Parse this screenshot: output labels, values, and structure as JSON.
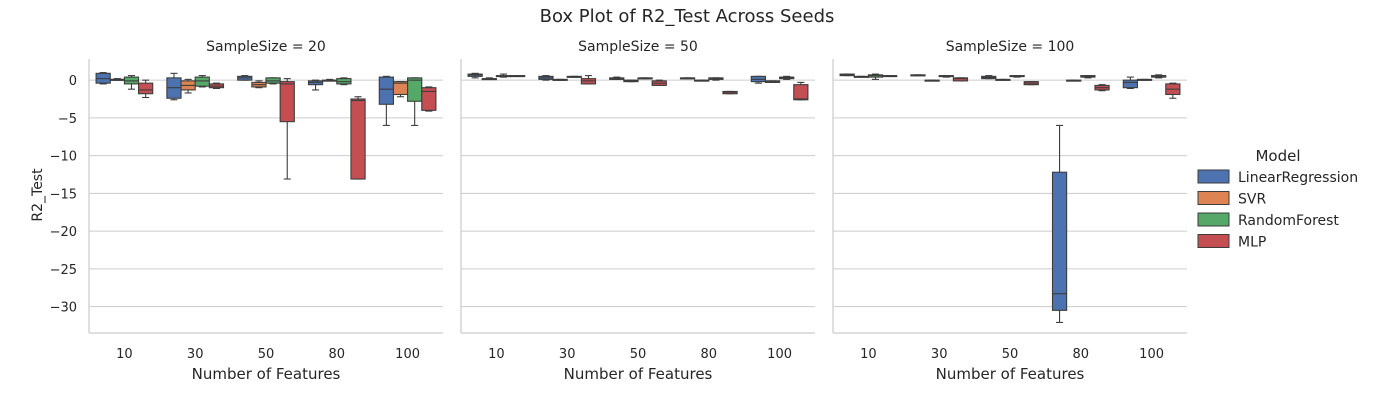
{
  "chart_data": {
    "type": "box",
    "title": "Box Plot of R2_Test Across Seeds",
    "ylabel": "R2_Test",
    "xlabel": "Number of Features",
    "categories": [
      "10",
      "30",
      "50",
      "80",
      "100"
    ],
    "yticks": [
      0,
      -5,
      -10,
      -15,
      -20,
      -25,
      -30
    ],
    "ylim": [
      -33.5,
      2.8
    ],
    "grid": "horizontal",
    "legend": {
      "title": "Model",
      "placement": "right",
      "entries": [
        {
          "name": "LinearRegression",
          "color": "#4c72b0"
        },
        {
          "name": "SVR",
          "color": "#dd8452"
        },
        {
          "name": "RandomForest",
          "color": "#55a868"
        },
        {
          "name": "MLP",
          "color": "#c44e52"
        }
      ]
    },
    "panels": [
      {
        "title": "SampleSize = 20",
        "boxes": {
          "LinearRegression": [
            [
              -0.5,
              -0.4,
              0.2,
              0.9,
              1.0
            ],
            [
              -2.6,
              -2.4,
              -1.0,
              0.3,
              0.9
            ],
            [
              0.0,
              0.0,
              0.3,
              0.5,
              0.6
            ],
            [
              -1.3,
              -0.6,
              -0.3,
              -0.1,
              0.0
            ],
            [
              -6.0,
              -3.2,
              -1.2,
              0.4,
              0.5
            ]
          ],
          "SVR": [
            [
              0.0,
              0.0,
              0.1,
              0.1,
              0.2
            ],
            [
              -1.7,
              -1.3,
              -0.7,
              -0.1,
              0.1
            ],
            [
              -1.0,
              -0.9,
              -0.6,
              -0.3,
              -0.1
            ],
            [
              -0.1,
              -0.1,
              -0.05,
              0.0,
              0.1
            ],
            [
              -2.2,
              -1.9,
              -0.4,
              -0.2,
              -0.2
            ]
          ],
          "RandomForest": [
            [
              -1.2,
              -0.5,
              -0.1,
              0.4,
              0.6
            ],
            [
              -0.9,
              -0.8,
              -0.1,
              0.4,
              0.6
            ],
            [
              -0.5,
              -0.4,
              -0.1,
              0.3,
              0.3
            ],
            [
              -0.6,
              -0.5,
              -0.2,
              0.2,
              0.3
            ],
            [
              -6.0,
              -2.8,
              0.0,
              0.3,
              0.3
            ]
          ],
          "MLP": [
            [
              -2.3,
              -1.8,
              -1.3,
              -0.4,
              0.0
            ],
            [
              -1.1,
              -1.0,
              -0.8,
              -0.5,
              -0.4
            ],
            [
              -13.1,
              -5.5,
              -0.5,
              -0.2,
              0.2
            ],
            [
              -13.1,
              -13.1,
              -2.7,
              -2.5,
              -2.2
            ],
            [
              -4.1,
              -4.0,
              -1.5,
              -1.0,
              -0.9
            ]
          ]
        }
      },
      {
        "title": "SampleSize = 50",
        "boxes": {
          "LinearRegression": [
            [
              0.3,
              0.5,
              0.7,
              0.8,
              0.9
            ],
            [
              0.0,
              0.1,
              0.3,
              0.5,
              0.6
            ],
            [
              0.1,
              0.1,
              0.2,
              0.3,
              0.4
            ],
            [
              0.2,
              0.2,
              0.25,
              0.3,
              0.3
            ],
            [
              -0.4,
              -0.2,
              0.1,
              0.5,
              0.5
            ]
          ],
          "SVR": [
            [
              0.1,
              0.1,
              0.15,
              0.2,
              0.3
            ],
            [
              0.0,
              0.0,
              0.05,
              0.1,
              0.1
            ],
            [
              -0.2,
              -0.2,
              -0.1,
              0.0,
              0.0
            ],
            [
              -0.1,
              -0.1,
              -0.05,
              0.0,
              0.0
            ],
            [
              -0.3,
              -0.3,
              -0.2,
              -0.1,
              -0.1
            ]
          ],
          "RandomForest": [
            [
              0.4,
              0.5,
              0.55,
              0.6,
              0.8
            ],
            [
              0.4,
              0.4,
              0.45,
              0.5,
              0.5
            ],
            [
              0.2,
              0.2,
              0.25,
              0.3,
              0.3
            ],
            [
              0.0,
              0.1,
              0.2,
              0.3,
              0.3
            ],
            [
              0.1,
              0.2,
              0.3,
              0.4,
              0.5
            ]
          ],
          "MLP": [
            [
              0.5,
              0.5,
              0.55,
              0.6,
              0.6
            ],
            [
              -0.5,
              -0.5,
              -0.1,
              0.2,
              0.6
            ],
            [
              -0.7,
              -0.7,
              -0.4,
              -0.1,
              0.0
            ],
            [
              -1.8,
              -1.8,
              -1.6,
              -1.5,
              -1.5
            ],
            [
              -2.6,
              -2.6,
              -2.5,
              -0.6,
              -0.3
            ]
          ]
        }
      },
      {
        "title": "SampleSize = 100",
        "boxes": {
          "LinearRegression": [
            [
              0.6,
              0.6,
              0.7,
              0.8,
              0.8
            ],
            [
              0.6,
              0.6,
              0.65,
              0.7,
              0.7
            ],
            [
              0.2,
              0.2,
              0.35,
              0.5,
              0.6
            ],
            [
              -32.1,
              -30.5,
              -28.3,
              -12.2,
              -6.0
            ],
            [
              -1.1,
              -1.0,
              -0.3,
              0.0,
              0.4
            ]
          ],
          "SVR": [
            [
              0.4,
              0.4,
              0.45,
              0.5,
              0.5
            ],
            [
              -0.1,
              -0.1,
              -0.05,
              0.0,
              0.0
            ],
            [
              0.0,
              0.0,
              0.05,
              0.1,
              0.1
            ],
            [
              -0.1,
              -0.1,
              -0.05,
              0.0,
              0.0
            ],
            [
              0.0,
              0.0,
              0.05,
              0.1,
              0.1
            ]
          ],
          "RandomForest": [
            [
              0.1,
              0.4,
              0.6,
              0.7,
              0.8
            ],
            [
              0.4,
              0.5,
              0.55,
              0.6,
              0.6
            ],
            [
              0.4,
              0.5,
              0.55,
              0.6,
              0.6
            ],
            [
              0.3,
              0.4,
              0.5,
              0.6,
              0.6
            ],
            [
              0.3,
              0.4,
              0.5,
              0.6,
              0.7
            ]
          ],
          "MLP": [
            [
              0.5,
              0.5,
              0.55,
              0.6,
              0.6
            ],
            [
              -0.1,
              -0.1,
              0.2,
              0.3,
              0.3
            ],
            [
              -0.6,
              -0.6,
              -0.4,
              -0.2,
              -0.2
            ],
            [
              -1.4,
              -1.3,
              -1.0,
              -0.7,
              -0.6
            ],
            [
              -2.4,
              -1.9,
              -1.2,
              -0.5,
              -0.4
            ]
          ]
        }
      }
    ]
  }
}
